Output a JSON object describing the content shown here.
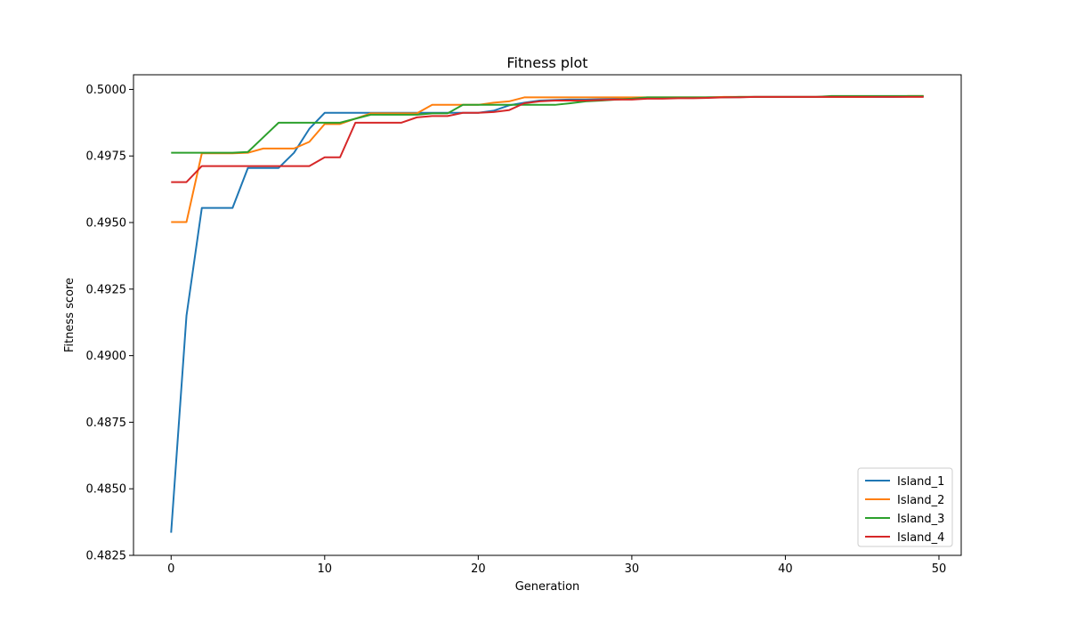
{
  "chart_data": {
    "type": "line",
    "title": "Fitness plot",
    "xlabel": "Generation",
    "ylabel": "Fitness score",
    "xlim": [
      -2.45,
      51.45
    ],
    "ylim": [
      0.4825,
      0.50055
    ],
    "xticks": [
      0,
      10,
      20,
      30,
      40,
      50
    ],
    "yticks": [
      0.4825,
      0.485,
      0.4875,
      0.49,
      0.4925,
      0.495,
      0.4975,
      0.5
    ],
    "ytick_labels": [
      "0.4825",
      "0.4850",
      "0.4875",
      "0.4900",
      "0.4925",
      "0.4950",
      "0.4975",
      "0.5000"
    ],
    "grid": false,
    "legend_position": "lower-right",
    "series": [
      {
        "name": "Island_1",
        "color": "#1f77b4",
        "values": [
          0.48335,
          0.4915,
          0.49555,
          0.49555,
          0.49555,
          0.49705,
          0.49705,
          0.49705,
          0.49762,
          0.49852,
          0.49912,
          0.49912,
          0.49912,
          0.49912,
          0.49912,
          0.49912,
          0.49912,
          0.49912,
          0.49912,
          0.49912,
          0.49912,
          0.4992,
          0.4994,
          0.4995,
          0.49958,
          0.4996,
          0.49962,
          0.49962,
          0.49963,
          0.49965,
          0.49965,
          0.49967,
          0.49967,
          0.49968,
          0.49968,
          0.4997,
          0.4997,
          0.49971,
          0.49972,
          0.49972,
          0.49972,
          0.49972,
          0.49972,
          0.49972,
          0.49972,
          0.49972,
          0.49972,
          0.49972,
          0.49973,
          0.49973
        ]
      },
      {
        "name": "Island_2",
        "color": "#ff7f0e",
        "values": [
          0.49502,
          0.49502,
          0.4976,
          0.4976,
          0.4976,
          0.49762,
          0.49778,
          0.49778,
          0.49778,
          0.49803,
          0.4987,
          0.4987,
          0.4989,
          0.4991,
          0.4991,
          0.4991,
          0.4991,
          0.49942,
          0.49942,
          0.49942,
          0.49942,
          0.4995,
          0.49955,
          0.4997,
          0.4997,
          0.4997,
          0.4997,
          0.4997,
          0.4997,
          0.4997,
          0.4997,
          0.4997,
          0.4997,
          0.4997,
          0.4997,
          0.4997,
          0.49972,
          0.49972,
          0.49972,
          0.49972,
          0.49972,
          0.49972,
          0.49972,
          0.49972,
          0.49972,
          0.49972,
          0.49973,
          0.49973,
          0.49975,
          0.49975
        ]
      },
      {
        "name": "Island_3",
        "color": "#2ca02c",
        "values": [
          0.49762,
          0.49762,
          0.49762,
          0.49762,
          0.49762,
          0.49765,
          0.4982,
          0.49875,
          0.49875,
          0.49875,
          0.49875,
          0.49875,
          0.4989,
          0.49905,
          0.49905,
          0.49905,
          0.49905,
          0.4991,
          0.4991,
          0.49942,
          0.49942,
          0.49942,
          0.49942,
          0.49942,
          0.49942,
          0.49942,
          0.49948,
          0.49955,
          0.49958,
          0.49962,
          0.49965,
          0.4997,
          0.4997,
          0.4997,
          0.4997,
          0.4997,
          0.4997,
          0.49972,
          0.49972,
          0.49972,
          0.49972,
          0.49972,
          0.49972,
          0.49975,
          0.49975,
          0.49975,
          0.49975,
          0.49975,
          0.49975,
          0.49975
        ]
      },
      {
        "name": "Island_4",
        "color": "#d62728",
        "values": [
          0.49652,
          0.49652,
          0.49712,
          0.49712,
          0.49712,
          0.49712,
          0.49712,
          0.49712,
          0.49712,
          0.49712,
          0.49745,
          0.49745,
          0.49875,
          0.49875,
          0.49875,
          0.49875,
          0.49895,
          0.499,
          0.499,
          0.49912,
          0.49912,
          0.49915,
          0.49922,
          0.49948,
          0.49955,
          0.49958,
          0.49958,
          0.49958,
          0.4996,
          0.49962,
          0.49962,
          0.49965,
          0.49965,
          0.49967,
          0.49967,
          0.49968,
          0.4997,
          0.4997,
          0.49972,
          0.49972,
          0.49972,
          0.49972,
          0.49972,
          0.49972,
          0.49972,
          0.49972,
          0.49972,
          0.49972,
          0.49972,
          0.49972
        ]
      }
    ]
  }
}
